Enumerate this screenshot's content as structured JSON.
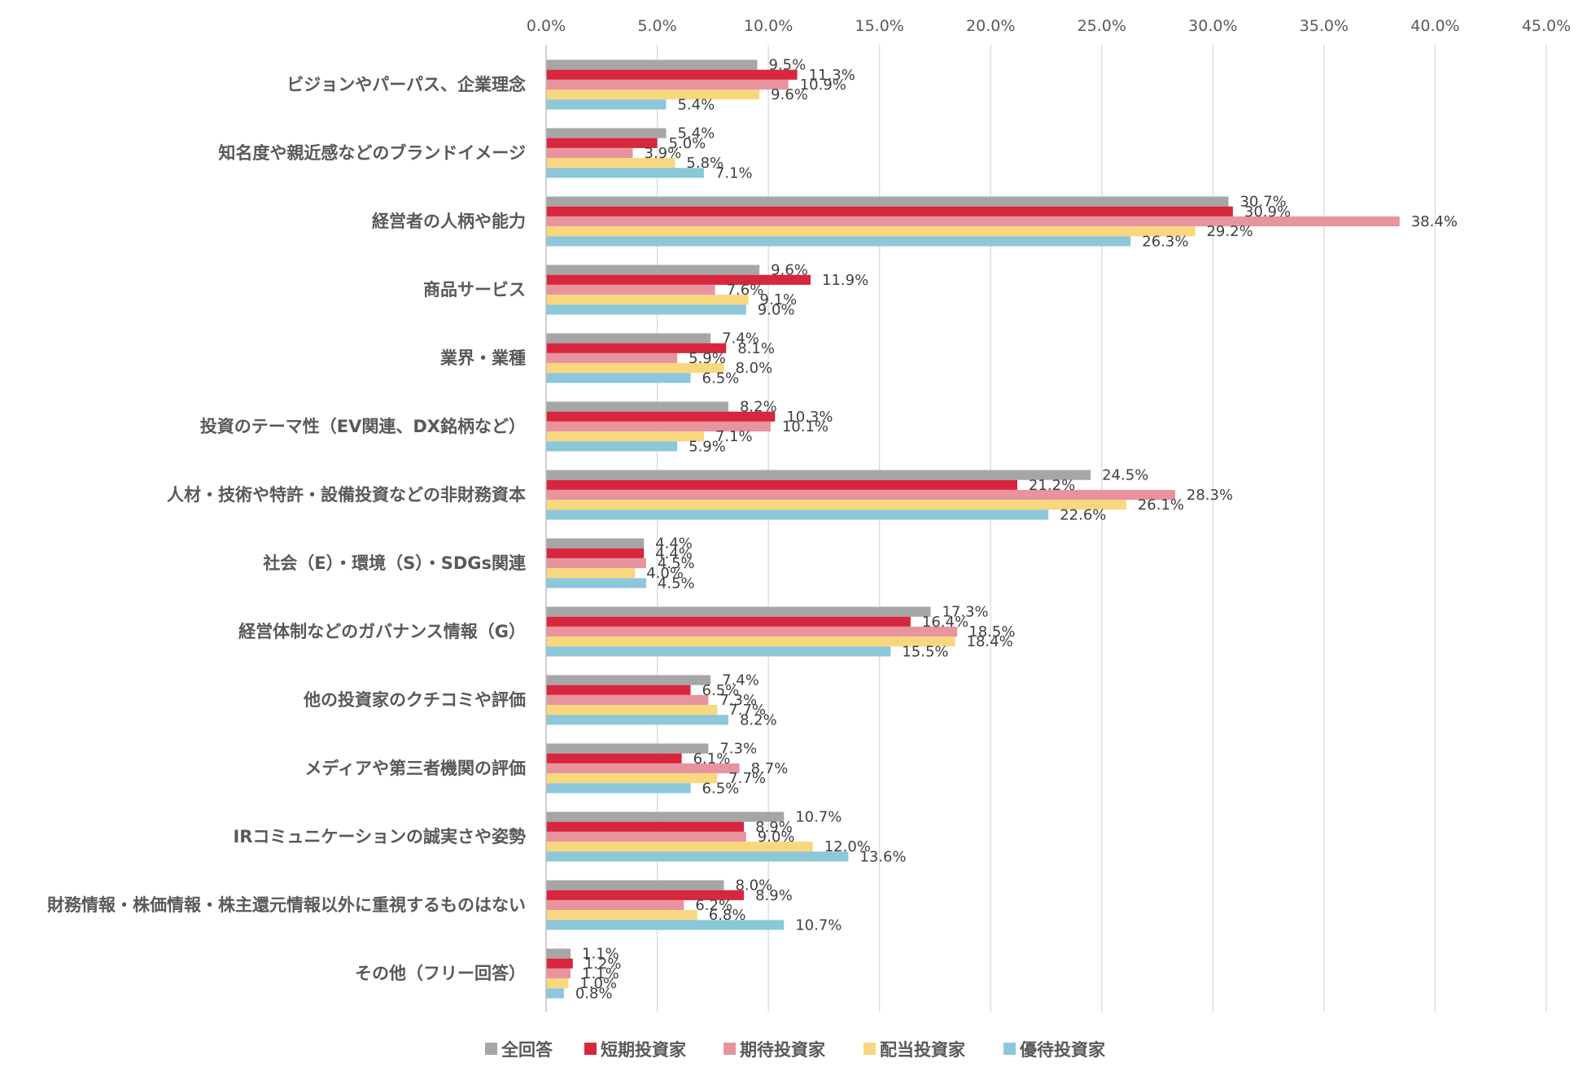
{
  "chart_data": {
    "type": "bar",
    "orientation": "horizontal",
    "title": "",
    "xlabel": "",
    "ylabel": "",
    "xlim": [
      0,
      45
    ],
    "x_ticks": [
      "0.0%",
      "5.0%",
      "10.0%",
      "15.0%",
      "20.0%",
      "25.0%",
      "30.0%",
      "35.0%",
      "40.0%",
      "45.0%"
    ],
    "x_tick_values": [
      0,
      5,
      10,
      15,
      20,
      25,
      30,
      35,
      40,
      45
    ],
    "x_axis_position": "top",
    "grid": true,
    "legend_position": "bottom",
    "categories": [
      "ビジョンやパーパス、企業理念",
      "知名度や親近感などのブランドイメージ",
      "経営者の人柄や能力",
      "商品サービス",
      "業界・業種",
      "投資のテーマ性（EV関連、DX銘柄など）",
      "人材・技術や特許・設備投資などの非財務資本",
      "社会（E）・環境（S）・SDGs関連",
      "経営体制などのガバナンス情報（G）",
      "他の投資家のクチコミや評価",
      "メディアや第三者機関の評価",
      "IRコミュニケーションの誠実さや姿勢",
      "財務情報・株価情報・株主還元情報以外に重視するものはない",
      "その他（フリー回答）"
    ],
    "series": [
      {
        "name": "全回答",
        "color": "#a6a6a6",
        "values": [
          9.5,
          5.4,
          30.7,
          9.6,
          7.4,
          8.2,
          24.5,
          4.4,
          17.3,
          7.4,
          7.3,
          10.7,
          8.0,
          1.1
        ],
        "labels": [
          "9.5%",
          "5.4%",
          "30.7%",
          "9.6%",
          "7.4%",
          "8.2%",
          "24.5%",
          "4.4%",
          "17.3%",
          "7.4%",
          "7.3%",
          "10.7%",
          "8.0%",
          "1.1%"
        ]
      },
      {
        "name": "短期投資家",
        "color": "#d7263d",
        "values": [
          11.3,
          5.0,
          30.9,
          11.9,
          8.1,
          10.3,
          21.2,
          4.4,
          16.4,
          6.5,
          6.1,
          8.9,
          8.9,
          1.2
        ],
        "labels": [
          "11.3%",
          "5.0%",
          "30.9%",
          "11.9%",
          "8.1%",
          "10.3%",
          "21.2%",
          "4.4%",
          "16.4%",
          "6.5%",
          "6.1%",
          "8.9%",
          "8.9%",
          "1.2%"
        ]
      },
      {
        "name": "期待投資家",
        "color": "#e8949e",
        "values": [
          10.9,
          3.9,
          38.4,
          7.6,
          5.9,
          10.1,
          28.3,
          4.5,
          18.5,
          7.3,
          8.7,
          9.0,
          6.2,
          1.1
        ],
        "labels": [
          "10.9%",
          "3.9%",
          "38.4%",
          "7.6%",
          "5.9%",
          "10.1%",
          "28.3%",
          "4.5%",
          "18.5%",
          "7.3%",
          "8.7%",
          "9.0%",
          "6.2%",
          "1.1%"
        ]
      },
      {
        "name": "配当投資家",
        "color": "#f9d77e",
        "values": [
          9.6,
          5.8,
          29.2,
          9.1,
          8.0,
          7.1,
          26.1,
          4.0,
          18.4,
          7.7,
          7.7,
          12.0,
          6.8,
          1.0
        ],
        "labels": [
          "9.6%",
          "5.8%",
          "29.2%",
          "9.1%",
          "8.0%",
          "7.1%",
          "26.1%",
          "4.0%",
          "18.4%",
          "7.7%",
          "7.7%",
          "12.0%",
          "6.8%",
          "1.0%"
        ]
      },
      {
        "name": "優待投資家",
        "color": "#8cc7da",
        "values": [
          5.4,
          7.1,
          26.3,
          9.0,
          6.5,
          5.9,
          22.6,
          4.5,
          15.5,
          8.2,
          6.5,
          13.6,
          10.7,
          0.8
        ],
        "labels": [
          "5.4%",
          "7.1%",
          "26.3%",
          "9.0%",
          "6.5%",
          "5.9%",
          "22.6%",
          "4.5%",
          "15.5%",
          "8.2%",
          "6.5%",
          "13.6%",
          "10.7%",
          "0.8%"
        ]
      }
    ]
  }
}
